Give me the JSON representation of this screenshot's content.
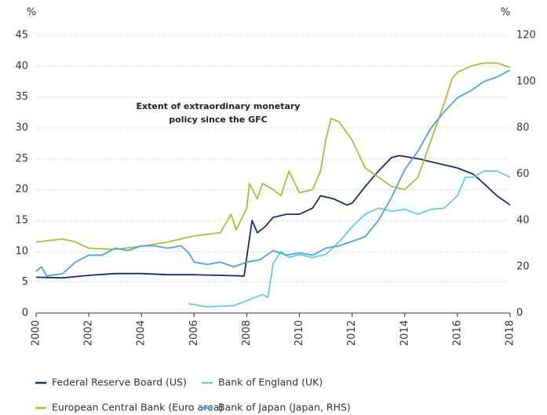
{
  "chart_data": {
    "type": "line",
    "annotation": "Extent of extraordinary monetary",
    "annotation2": "policy since the GFC",
    "ylabel": "%",
    "y2label": "%",
    "xlim": [
      2000,
      2018
    ],
    "xticks": [
      2000,
      2002,
      2004,
      2006,
      2008,
      2010,
      2012,
      2014,
      2016,
      2018
    ],
    "ylim": [
      0,
      45
    ],
    "yticks": [
      0,
      5,
      10,
      15,
      20,
      25,
      30,
      35,
      40,
      45
    ],
    "y2lim": [
      0,
      120
    ],
    "y2ticks": [
      0,
      20,
      40,
      60,
      80,
      100,
      120
    ],
    "grid": true,
    "series": [
      {
        "name": "Federal Reserve Board (US)",
        "color": "#1c2b6b",
        "x": [
          2000,
          2001,
          2002,
          2003,
          2004,
          2005,
          2006,
          2007,
          2007.9,
          2008,
          2008.2,
          2008.4,
          2008.7,
          2009,
          2009.5,
          2010,
          2010.5,
          2010.8,
          2011.3,
          2011.8,
          2012,
          2012.5,
          2013,
          2013.5,
          2013.8,
          2014.5,
          2015,
          2016,
          2016.6,
          2017,
          2017.5,
          2018
        ],
        "values": [
          5.8,
          5.7,
          6.1,
          6.4,
          6.4,
          6.2,
          6.2,
          6.1,
          6.0,
          9,
          15,
          13,
          14,
          15.5,
          16,
          16,
          17,
          19,
          18.5,
          17.5,
          17.8,
          20.5,
          23,
          25.2,
          25.5,
          25,
          24.5,
          23.5,
          22.5,
          21,
          19,
          17.5
        ]
      },
      {
        "name": "Bank of England (UK)",
        "color": "#6ccad2",
        "x": [
          2005.8,
          2006.5,
          2007,
          2007.5,
          2008,
          2008.6,
          2008.8,
          2009,
          2009.3,
          2009.6,
          2010,
          2010.5,
          2011,
          2011.5,
          2012,
          2012.5,
          2013,
          2013.5,
          2014,
          2014.5,
          2015,
          2015.5,
          2016,
          2016.3,
          2016.6,
          2017,
          2017.5,
          2018
        ],
        "values": [
          1.5,
          1.0,
          1.1,
          1.2,
          2,
          3,
          2.5,
          8,
          10,
          9,
          9.5,
          9,
          9.5,
          11.5,
          14,
          16,
          17,
          16.5,
          16.8,
          16,
          16.8,
          17,
          19,
          22,
          22,
          23,
          23,
          22
        ]
      },
      {
        "name": "European Central Bank (Euro area)",
        "color": "#a9bd3a",
        "x": [
          2000,
          2001,
          2001.5,
          2002,
          2003,
          2004,
          2005,
          2006,
          2007,
          2007.4,
          2007.6,
          2008,
          2008.1,
          2008.4,
          2008.6,
          2009,
          2009.3,
          2009.6,
          2010,
          2010.5,
          2010.8,
          2011,
          2011.2,
          2011.5,
          2012,
          2012.5,
          2013,
          2013.5,
          2014,
          2014.5,
          2015,
          2015.5,
          2015.8,
          2016,
          2016.5,
          2017,
          2017.5,
          2018
        ],
        "values": [
          11.5,
          12,
          11.5,
          10.5,
          10.3,
          10.8,
          11.5,
          12.5,
          13,
          16,
          13.5,
          17,
          21,
          18.5,
          21,
          20,
          19,
          23,
          19.5,
          20,
          23,
          28,
          31.5,
          31,
          28,
          23.5,
          22,
          20.5,
          20,
          22,
          28,
          34,
          38,
          39,
          40,
          40.5,
          40.5,
          39.8
        ]
      },
      {
        "name": "Bank of Japan (Japan, RHS)",
        "color": "#4fa3d8",
        "axis": "y2",
        "x": [
          2000,
          2000.2,
          2000.4,
          2001,
          2001.5,
          2002,
          2002.5,
          2003,
          2003.5,
          2004,
          2004.5,
          2005,
          2005.5,
          2005.8,
          2006,
          2006.5,
          2007,
          2007.5,
          2008,
          2008.5,
          2009,
          2009.5,
          2010,
          2010.5,
          2011,
          2011.5,
          2012,
          2012.5,
          2013,
          2013.5,
          2014,
          2014.5,
          2015,
          2015.5,
          2016,
          2016.5,
          2017,
          2017.5,
          2018
        ],
        "values": [
          18,
          20,
          16,
          17,
          22,
          25,
          25,
          28,
          27,
          29,
          29,
          28,
          29,
          26,
          22,
          21,
          22,
          20,
          22,
          23,
          27,
          25,
          26,
          25,
          28,
          29,
          31,
          33,
          40,
          50,
          62,
          70,
          80,
          87,
          93,
          96,
          100,
          102,
          105
        ]
      }
    ]
  }
}
